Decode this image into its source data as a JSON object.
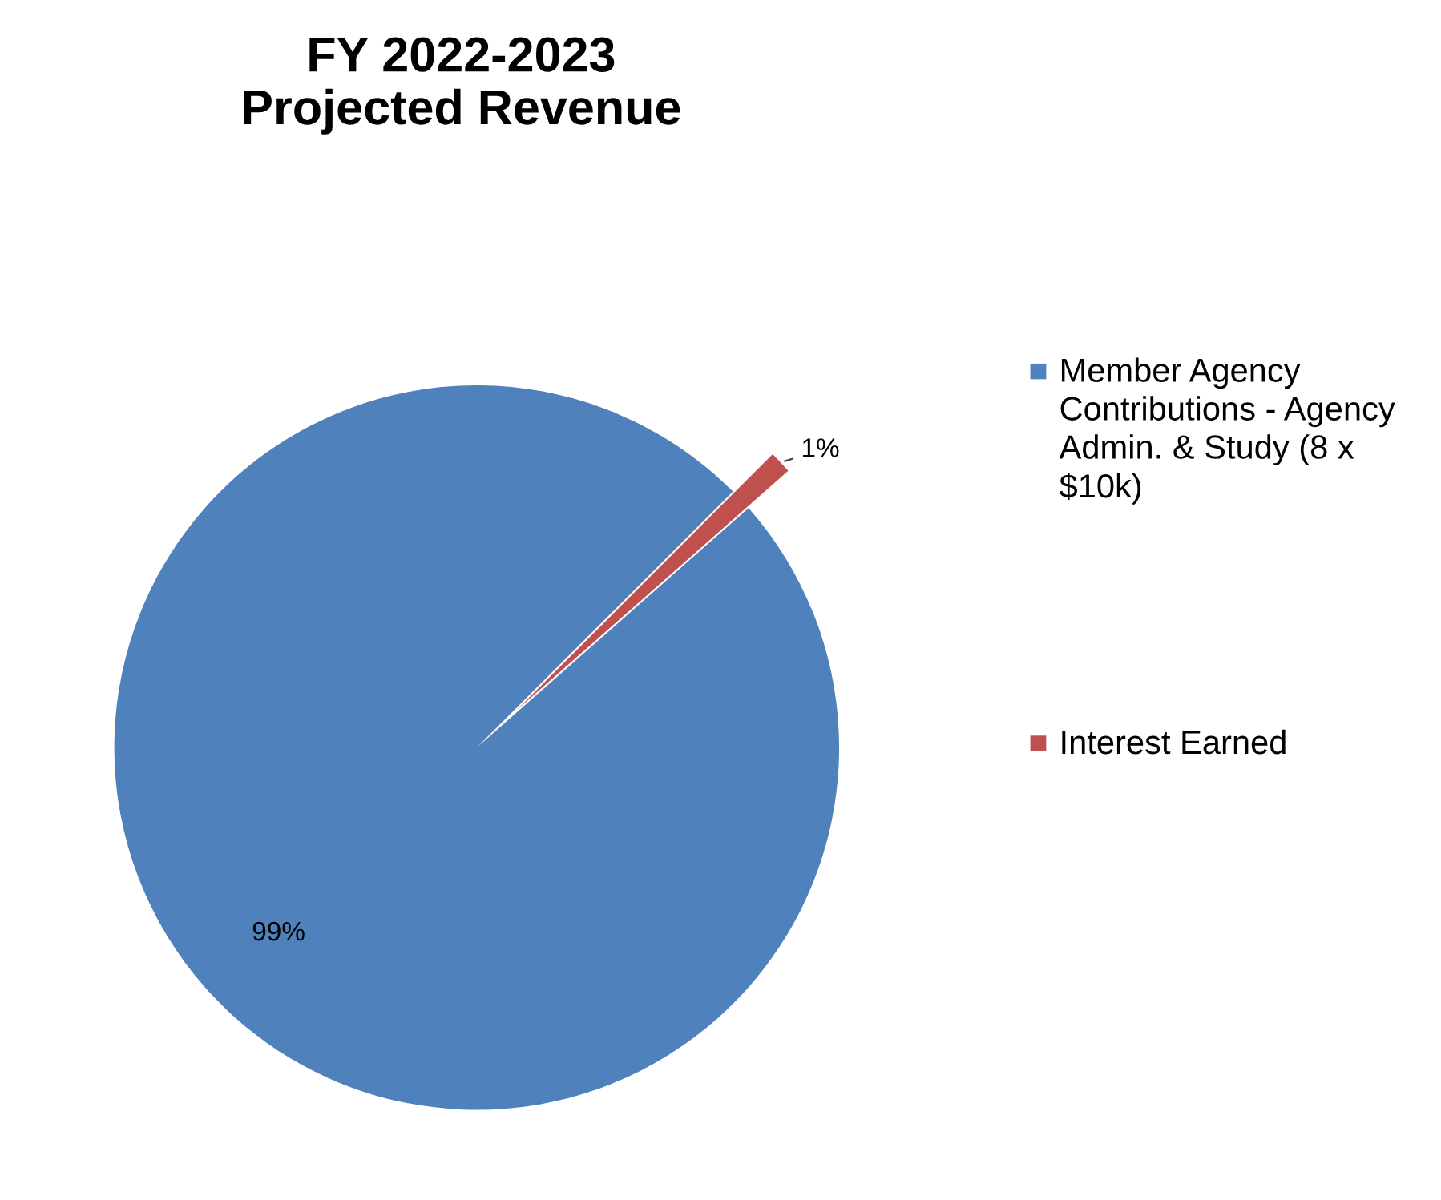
{
  "chart_data": {
    "type": "pie",
    "title": "FY 2022-2023\nProjected Revenue",
    "categories": [
      "Member Agency Contributions - Agency Admin. & Study (8 x $10k)",
      "Interest Earned"
    ],
    "values": [
      99,
      1
    ],
    "colors": [
      "#4f81bd",
      "#c0504d"
    ],
    "value_labels": [
      "99%",
      "1%"
    ],
    "legend": "right"
  }
}
